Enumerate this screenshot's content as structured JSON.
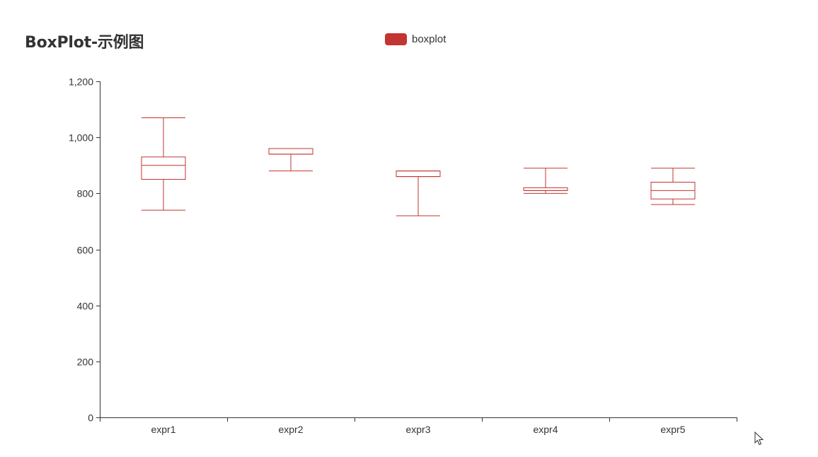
{
  "chart_data": {
    "type": "boxplot",
    "title": "BoxPlot-示例图",
    "legend": {
      "entries": [
        "boxplot"
      ],
      "placement": "top-center"
    },
    "color": "#c23531",
    "categories": [
      "expr1",
      "expr2",
      "expr3",
      "expr4",
      "expr5"
    ],
    "ylim": [
      0,
      1200
    ],
    "yticks": [
      0,
      200,
      400,
      600,
      800,
      1000,
      1200
    ],
    "ytick_labels": [
      "0",
      "200",
      "400",
      "600",
      "800",
      "1,000",
      "1,200"
    ],
    "series": [
      {
        "name": "boxplot",
        "boxes": [
          {
            "min": 740,
            "q1": 850,
            "median": 900,
            "q3": 930,
            "max": 1070
          },
          {
            "min": 880,
            "q1": 940,
            "median": 940,
            "q3": 960,
            "max": 960
          },
          {
            "min": 720,
            "q1": 860,
            "median": 860,
            "q3": 880,
            "max": 880
          },
          {
            "min": 800,
            "q1": 810,
            "median": 810,
            "q3": 820,
            "max": 890
          },
          {
            "min": 760,
            "q1": 780,
            "median": 810,
            "q3": 840,
            "max": 890
          }
        ]
      }
    ]
  },
  "ui": {
    "cursor_icon": "mouse-pointer-icon"
  }
}
